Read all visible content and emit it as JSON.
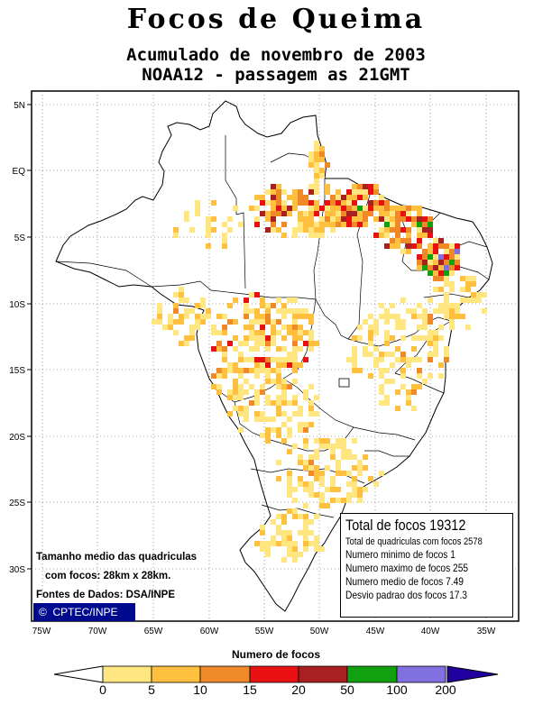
{
  "title": "Focos de Queima",
  "subtitle_line1": "Acumulado de novembro de 2003",
  "subtitle_line2": "NOAA12 - passagem as 21GMT",
  "lat_labels": [
    "5N",
    "EQ",
    "5S",
    "10S",
    "15S",
    "20S",
    "25S",
    "30S"
  ],
  "lon_labels": [
    "75W",
    "70W",
    "65W",
    "60W",
    "55W",
    "50W",
    "45W",
    "40W",
    "35W"
  ],
  "stats": {
    "total": "Total de focos 19312",
    "cells": "Total de quadriculas com focos 2578",
    "min": "Numero minimo de focos 1",
    "max": "Numero maximo de focos 255",
    "mean": "Numero medio de focos 7.49",
    "std": "Desvio padrao dos focos 17.3"
  },
  "notes": {
    "size_line1": "Tamanho medio das quadriculas",
    "size_line2": "com focos: 28km x 28km.",
    "source": "Fontes de Dados: DSA/INPE"
  },
  "badge": {
    "symbol": "©",
    "text": "CPTEC/INPE"
  },
  "legend": {
    "title": "Numero de focos",
    "labels": [
      "0",
      "5",
      "10",
      "15",
      "20",
      "50",
      "100",
      "200"
    ],
    "colors": [
      "#ffe680",
      "#ffc040",
      "#f08a28",
      "#e81010",
      "#a82020",
      "#10a010",
      "#8070e0",
      "#2000a0"
    ]
  }
}
